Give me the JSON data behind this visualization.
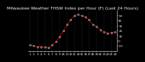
{
  "title": "Milwaukee Weather THSW Index per Hour (F) (Last 24 Hours)",
  "background_color": "#000000",
  "plot_bg_color": "#000000",
  "line_color": "#dd0000",
  "dot_color": "#000000",
  "dot_edge_color": "#ffffff",
  "grid_color": "#555555",
  "title_color": "#ffffff",
  "tick_color": "#ffffff",
  "spine_color": "#ffffff",
  "x_values": [
    0,
    1,
    2,
    3,
    4,
    5,
    6,
    7,
    8,
    9,
    10,
    11,
    12,
    13,
    14,
    15,
    16,
    17,
    18,
    19,
    20,
    21,
    22,
    23
  ],
  "y_values": [
    -8,
    -10,
    -12,
    -12,
    -13,
    -14,
    -8,
    -2,
    8,
    20,
    32,
    42,
    50,
    52,
    50,
    47,
    42,
    32,
    28,
    22,
    18,
    15,
    16,
    18
  ],
  "y_tick_positions": [
    -10,
    0,
    10,
    20,
    30,
    40,
    50
  ],
  "y_tick_labels": [
    "-10",
    "0",
    "10",
    "20",
    "30",
    "40",
    "50"
  ],
  "ylim": [
    -20,
    60
  ],
  "xlim": [
    -0.5,
    23.5
  ],
  "x_tick_positions": [
    0,
    1,
    2,
    3,
    4,
    5,
    6,
    7,
    8,
    9,
    10,
    11,
    12,
    13,
    14,
    15,
    16,
    17,
    18,
    19,
    20,
    21,
    22,
    23
  ],
  "x_tick_labels": [
    "1",
    "2",
    "3",
    "4",
    "5",
    "6",
    "7",
    "8",
    "9",
    "10",
    "11",
    "12",
    "13",
    "14",
    "15",
    "16",
    "17",
    "18",
    "19",
    "20",
    "21",
    "22",
    "23",
    "24"
  ],
  "vgrid_positions": [
    0,
    2,
    4,
    6,
    8,
    10,
    12,
    14,
    16,
    18,
    20,
    22
  ],
  "title_fontsize": 4.5,
  "tick_fontsize": 3.2,
  "linewidth": 0.6,
  "markersize": 2.5,
  "marker_linewidth": 0.4
}
